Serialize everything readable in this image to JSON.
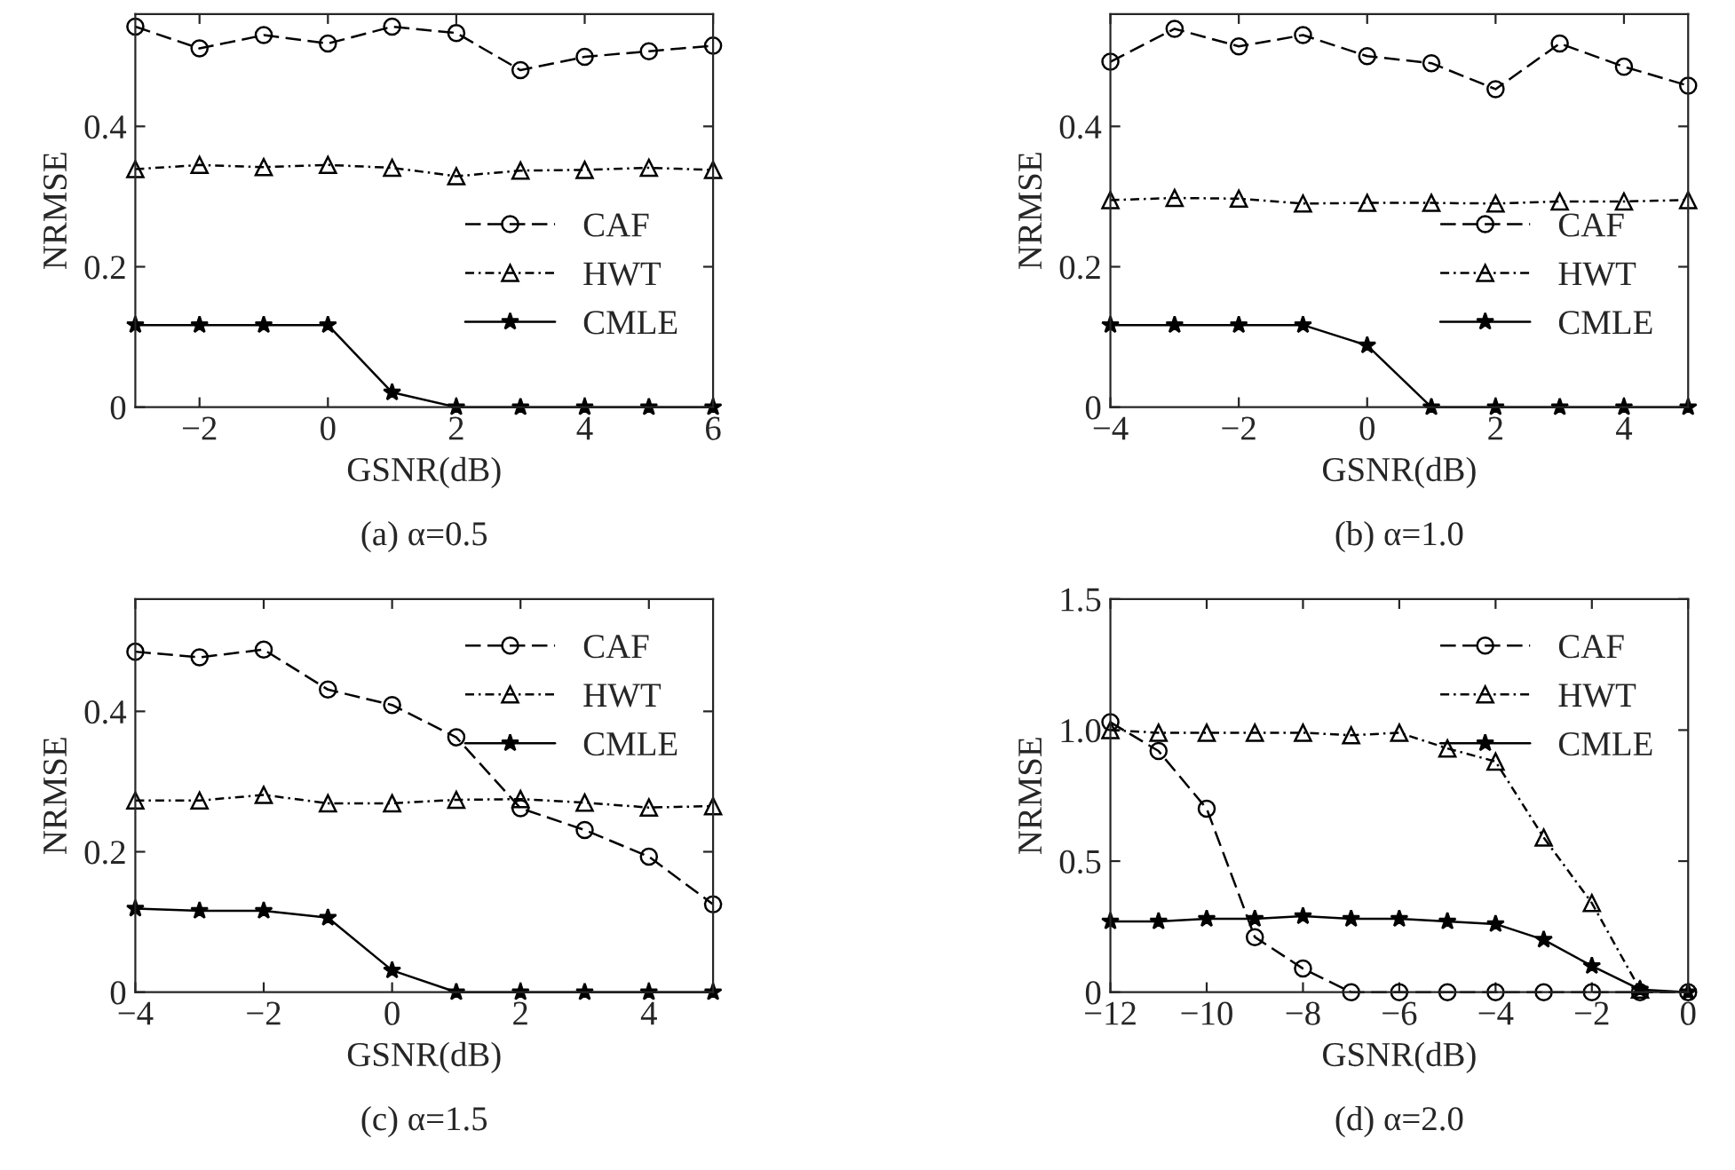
{
  "chart_data": [
    {
      "type": "line",
      "title": "(a) α=0.5",
      "xlabel": "GSNR(dB)",
      "ylabel": "NRMSE",
      "x": [
        -3,
        -2,
        -1,
        0,
        1,
        2,
        3,
        4,
        5,
        6
      ],
      "xlim": [
        -3,
        6
      ],
      "ylim": [
        0,
        0.56
      ],
      "xticks": [
        {
          "value": -2,
          "label": "−2"
        },
        0,
        2,
        4,
        6
      ],
      "yticks": [
        0,
        0.2,
        0.4
      ],
      "legend": "bottom right",
      "grid": false,
      "series": [
        {
          "name": "CAF",
          "color": "#000000",
          "marker": "circle",
          "line_style": "dashed",
          "values": [
            0.542,
            0.511,
            0.53,
            0.518,
            0.542,
            0.533,
            0.48,
            0.499,
            0.507,
            0.515
          ]
        },
        {
          "name": "HWT",
          "color": "#000000",
          "marker": "triangle",
          "line_style": "dashdot",
          "values": [
            0.339,
            0.345,
            0.342,
            0.345,
            0.341,
            0.329,
            0.337,
            0.338,
            0.341,
            0.338
          ]
        },
        {
          "name": "CMLE",
          "color": "#000000",
          "marker": "star",
          "line_style": "solid",
          "values": [
            0.117,
            0.117,
            0.117,
            0.117,
            0.021,
            0,
            0,
            0,
            0,
            0
          ]
        }
      ]
    },
    {
      "type": "line",
      "title": "(b) α=1.0",
      "xlabel": "GSNR(dB)",
      "ylabel": "NRMSE",
      "x": [
        -4,
        -3,
        -2,
        -1,
        0,
        1,
        2,
        3,
        4,
        5
      ],
      "xlim": [
        -4,
        5
      ],
      "ylim": [
        0,
        0.56
      ],
      "xticks": [
        {
          "value": -4,
          "label": "−4"
        },
        {
          "value": -2,
          "label": "−2"
        },
        0,
        2,
        4
      ],
      "yticks": [
        0,
        0.2,
        0.4
      ],
      "legend": "bottom right",
      "grid": false,
      "series": [
        {
          "name": "CAF",
          "color": "#000000",
          "marker": "circle",
          "line_style": "dashed",
          "values": [
            0.492,
            0.539,
            0.514,
            0.53,
            0.5,
            0.49,
            0.453,
            0.518,
            0.485,
            0.458
          ]
        },
        {
          "name": "HWT",
          "color": "#000000",
          "marker": "triangle",
          "line_style": "dashdot",
          "values": [
            0.295,
            0.298,
            0.297,
            0.29,
            0.291,
            0.291,
            0.29,
            0.293,
            0.293,
            0.295
          ]
        },
        {
          "name": "CMLE",
          "color": "#000000",
          "marker": "star",
          "line_style": "solid",
          "values": [
            0.117,
            0.117,
            0.117,
            0.117,
            0.088,
            0,
            0,
            0,
            0,
            0
          ]
        }
      ]
    },
    {
      "type": "line",
      "title": "(c) α=1.5",
      "xlabel": "GSNR(dB)",
      "ylabel": "NRMSE",
      "x": [
        -4,
        -3,
        -2,
        -1,
        0,
        1,
        2,
        3,
        4,
        5
      ],
      "xlim": [
        -4,
        5
      ],
      "ylim": [
        0,
        0.56
      ],
      "xticks": [
        {
          "value": -4,
          "label": "−4"
        },
        {
          "value": -2,
          "label": "−2"
        },
        0,
        2,
        4
      ],
      "yticks": [
        0,
        0.2,
        0.4
      ],
      "legend": "top right",
      "grid": false,
      "series": [
        {
          "name": "CAF",
          "color": "#000000",
          "marker": "circle",
          "line_style": "dashed",
          "values": [
            0.485,
            0.477,
            0.488,
            0.431,
            0.409,
            0.363,
            0.262,
            0.231,
            0.193,
            0.125
          ]
        },
        {
          "name": "HWT",
          "color": "#000000",
          "marker": "triangle",
          "line_style": "dashdot",
          "values": [
            0.273,
            0.273,
            0.281,
            0.269,
            0.269,
            0.274,
            0.275,
            0.27,
            0.263,
            0.265
          ]
        },
        {
          "name": "CMLE",
          "color": "#000000",
          "marker": "star",
          "line_style": "solid",
          "values": [
            0.119,
            0.116,
            0.116,
            0.106,
            0.031,
            0,
            0,
            0,
            0,
            0
          ]
        }
      ]
    },
    {
      "type": "line",
      "title": "(d) α=2.0",
      "xlabel": "GSNR(dB)",
      "ylabel": "NRMSE",
      "x": [
        -12,
        -11,
        -10,
        -9,
        -8,
        -7,
        -6,
        -5,
        -4,
        -3,
        -2,
        -1,
        0
      ],
      "xlim": [
        -12,
        0
      ],
      "ylim": [
        0,
        1.5
      ],
      "xticks": [
        {
          "value": -12,
          "label": "−12"
        },
        {
          "value": -10,
          "label": "−10"
        },
        {
          "value": -8,
          "label": "−8"
        },
        {
          "value": -6,
          "label": "−6"
        },
        {
          "value": -4,
          "label": "−4"
        },
        {
          "value": -2,
          "label": "−2"
        },
        0
      ],
      "yticks": [
        0,
        0.5,
        {
          "value": 1.0,
          "label": "1.0"
        },
        1.5
      ],
      "legend": "top right",
      "grid": false,
      "series": [
        {
          "name": "CAF",
          "color": "#000000",
          "marker": "circle",
          "line_style": "dashed",
          "values": [
            1.03,
            0.92,
            0.7,
            0.21,
            0.09,
            0,
            0,
            0,
            0,
            0,
            0,
            0,
            0
          ]
        },
        {
          "name": "HWT",
          "color": "#000000",
          "marker": "triangle",
          "line_style": "dashdot",
          "values": [
            1.0,
            0.99,
            0.99,
            0.99,
            0.99,
            0.98,
            0.99,
            0.93,
            0.88,
            0.59,
            0.34,
            0.01,
            null
          ]
        },
        {
          "name": "CMLE",
          "color": "#000000",
          "marker": "star",
          "line_style": "solid",
          "values": [
            0.27,
            0.27,
            0.28,
            0.28,
            0.29,
            0.28,
            0.28,
            0.27,
            0.26,
            0.2,
            0.1,
            0.01,
            0
          ]
        }
      ]
    }
  ]
}
